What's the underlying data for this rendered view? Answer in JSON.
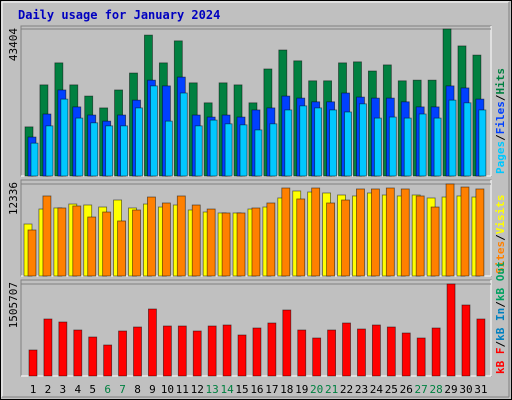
{
  "title": "Daily usage for January 2024",
  "categories": [
    "1",
    "2",
    "3",
    "4",
    "5",
    "6",
    "7",
    "8",
    "9",
    "10",
    "11",
    "12",
    "13",
    "14",
    "15",
    "16",
    "17",
    "18",
    "19",
    "20",
    "21",
    "22",
    "23",
    "24",
    "25",
    "26",
    "27",
    "28",
    "29",
    "30",
    "31"
  ],
  "category_colors": [
    "#000000",
    "#000000",
    "#000000",
    "#000000",
    "#000000",
    "#008040",
    "#008040",
    "#000000",
    "#000000",
    "#000000",
    "#000000",
    "#000000",
    "#008040",
    "#008040",
    "#000000",
    "#000000",
    "#000000",
    "#000000",
    "#000000",
    "#008040",
    "#008040",
    "#000000",
    "#000000",
    "#000000",
    "#000000",
    "#000000",
    "#008040",
    "#008040",
    "#000000",
    "#000000",
    "#000000"
  ],
  "chart_data": [
    {
      "type": "bar",
      "ylim": [
        0,
        43404
      ],
      "yticks": [
        43404
      ],
      "series": [
        {
          "name": "Hits",
          "color": "#008040",
          "values": [
            14500,
            26900,
            33400,
            26900,
            23600,
            20100,
            25400,
            30400,
            41600,
            33400,
            39900,
            27500,
            21600,
            27500,
            26900,
            21600,
            31600,
            37200,
            34000,
            28100,
            28100,
            33400,
            33700,
            31000,
            32800,
            28100,
            28300,
            28300,
            43404,
            38400,
            35700
          ]
        },
        {
          "name": "Files",
          "color": "#0040ff",
          "values": [
            11500,
            18300,
            25400,
            20400,
            18000,
            16200,
            18000,
            22400,
            28300,
            26600,
            29200,
            18000,
            17400,
            18000,
            17400,
            19500,
            20100,
            23600,
            23000,
            21900,
            21900,
            24500,
            23300,
            23000,
            23000,
            21900,
            20400,
            20400,
            26600,
            26000,
            22700
          ]
        },
        {
          "name": "Pages",
          "color": "#00c8ff",
          "values": [
            9700,
            14800,
            22700,
            17100,
            15700,
            14800,
            14800,
            20100,
            26600,
            16200,
            24500,
            14800,
            16500,
            15400,
            15100,
            13600,
            15400,
            19500,
            20700,
            20100,
            19500,
            18900,
            21300,
            17100,
            17400,
            17100,
            18300,
            17100,
            22400,
            21600,
            19500
          ]
        }
      ]
    },
    {
      "type": "bar",
      "ylim": [
        0,
        12336
      ],
      "yticks": [
        12336
      ],
      "series": [
        {
          "name": "Visits",
          "color": "#ffff00",
          "values": [
            6970,
            8980,
            9120,
            9650,
            9520,
            9250,
            10190,
            9120,
            9650,
            9250,
            9520,
            8850,
            8580,
            8450,
            8450,
            8980,
            9250,
            10460,
            11400,
            11260,
            11130,
            10860,
            10730,
            11130,
            10860,
            10730,
            10860,
            10460,
            10590,
            10730,
            10590
          ]
        },
        {
          "name": "Sites",
          "color": "#ff8000",
          "values": [
            6170,
            10730,
            9120,
            9390,
            7910,
            8580,
            7380,
            8850,
            10590,
            9790,
            10730,
            9520,
            8980,
            8450,
            8450,
            9120,
            9790,
            11800,
            10330,
            11800,
            9790,
            10190,
            11670,
            11670,
            11800,
            11670,
            10730,
            9250,
            12336,
            11930,
            11670
          ]
        }
      ]
    },
    {
      "type": "bar",
      "ylim": [
        0,
        1505707
      ],
      "yticks": [
        1505707
      ],
      "series": [
        {
          "name": "kB F",
          "color": "#ff0000",
          "values": [
            425500,
            932900,
            883800,
            752800,
            638300,
            507300,
            736500,
            801900,
            1096500,
            818300,
            818300,
            736500,
            818300,
            834700,
            671000,
            785600,
            867400,
            1080200,
            752800,
            621900,
            752800,
            867400,
            769200,
            834700,
            801900,
            703700,
            621900,
            785600,
            1505707,
            1162000,
            932900
          ]
        }
      ],
      "extra_legend": [
        {
          "name": "kB In",
          "color": "#0080c0"
        },
        {
          "name": "kB Out",
          "color": "#00a060"
        }
      ]
    }
  ]
}
